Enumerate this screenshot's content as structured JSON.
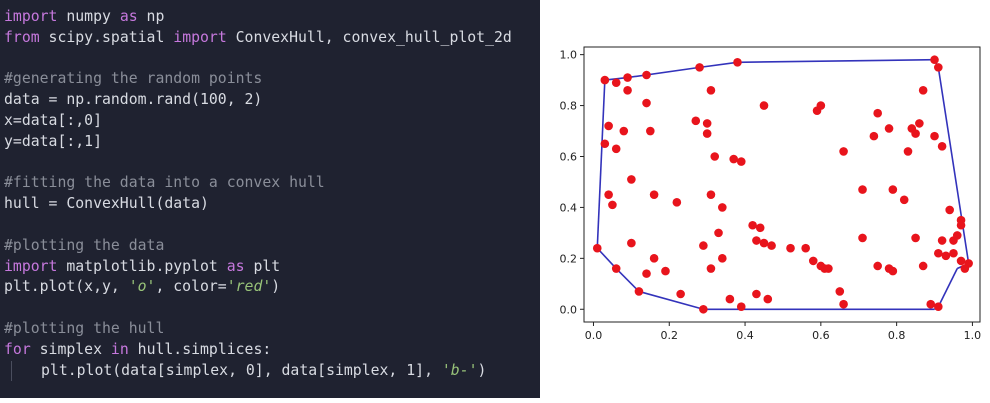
{
  "code": {
    "lines": [
      [
        {
          "t": "import",
          "c": "kw"
        },
        {
          "t": " numpy ",
          "c": ""
        },
        {
          "t": "as",
          "c": "kw"
        },
        {
          "t": " np",
          "c": ""
        }
      ],
      [
        {
          "t": "from",
          "c": "kw"
        },
        {
          "t": " scipy.spatial ",
          "c": ""
        },
        {
          "t": "import",
          "c": "kw"
        },
        {
          "t": " ConvexHull, convex_hull_plot_2d",
          "c": ""
        }
      ],
      [],
      [
        {
          "t": "#generating the random points",
          "c": "comment"
        }
      ],
      [
        {
          "t": "data = np.random.rand(100, 2)",
          "c": ""
        }
      ],
      [
        {
          "t": "x=data[:,0]",
          "c": ""
        }
      ],
      [
        {
          "t": "y=data[:,1]",
          "c": ""
        }
      ],
      [],
      [
        {
          "t": "#fitting the data into a convex hull",
          "c": "comment"
        }
      ],
      [
        {
          "t": "hull = ConvexHull(data)",
          "c": ""
        }
      ],
      [],
      [
        {
          "t": "#plotting the data",
          "c": "comment"
        }
      ],
      [
        {
          "t": "import",
          "c": "kw"
        },
        {
          "t": " matplotlib.pyplot ",
          "c": ""
        },
        {
          "t": "as",
          "c": "kw"
        },
        {
          "t": " plt",
          "c": ""
        }
      ],
      [
        {
          "t": "plt.plot(x,y, ",
          "c": ""
        },
        {
          "t": "'o'",
          "c": "str"
        },
        {
          "t": ", color=",
          "c": ""
        },
        {
          "t": "'red'",
          "c": "str"
        },
        {
          "t": ")",
          "c": ""
        }
      ],
      [],
      [
        {
          "t": "#plotting the hull",
          "c": "comment"
        }
      ],
      [
        {
          "t": "for",
          "c": "kw"
        },
        {
          "t": " simplex ",
          "c": ""
        },
        {
          "t": "in",
          "c": "kw"
        },
        {
          "t": " hull.simplices:",
          "c": ""
        }
      ],
      [
        {
          "t": "plt.plot(data[simplex, 0], data[simplex, 1], ",
          "c": ""
        },
        {
          "t": "'b-'",
          "c": "str"
        },
        {
          "t": ")",
          "c": ""
        }
      ]
    ],
    "indented_lines": [
      17
    ]
  },
  "colors": {
    "code_bg": "#1f2230",
    "point": "#e8141c",
    "hull": "#3333bb"
  },
  "chart_data": {
    "type": "scatter",
    "xlim": [
      -0.025,
      1.02
    ],
    "ylim": [
      -0.05,
      1.03
    ],
    "xticks": [
      0.0,
      0.2,
      0.4,
      0.6,
      0.8,
      1.0
    ],
    "yticks": [
      0.0,
      0.2,
      0.4,
      0.6,
      0.8,
      1.0
    ],
    "xtick_labels": [
      "0.0",
      "0.2",
      "0.4",
      "0.6",
      "0.8",
      "1.0"
    ],
    "ytick_labels": [
      "0.0",
      "0.2",
      "0.4",
      "0.6",
      "0.8",
      "1.0"
    ],
    "grid": false,
    "points": [
      [
        0.03,
        0.9
      ],
      [
        0.06,
        0.89
      ],
      [
        0.09,
        0.86
      ],
      [
        0.09,
        0.91
      ],
      [
        0.14,
        0.92
      ],
      [
        0.14,
        0.81
      ],
      [
        0.28,
        0.95
      ],
      [
        0.38,
        0.97
      ],
      [
        0.9,
        0.98
      ],
      [
        0.91,
        0.95
      ],
      [
        0.87,
        0.86
      ],
      [
        0.31,
        0.86
      ],
      [
        0.45,
        0.8
      ],
      [
        0.59,
        0.78
      ],
      [
        0.6,
        0.8
      ],
      [
        0.04,
        0.72
      ],
      [
        0.08,
        0.7
      ],
      [
        0.15,
        0.7
      ],
      [
        0.27,
        0.74
      ],
      [
        0.3,
        0.73
      ],
      [
        0.3,
        0.69
      ],
      [
        0.32,
        0.6
      ],
      [
        0.37,
        0.59
      ],
      [
        0.39,
        0.58
      ],
      [
        0.66,
        0.62
      ],
      [
        0.75,
        0.77
      ],
      [
        0.74,
        0.68
      ],
      [
        0.78,
        0.71
      ],
      [
        0.84,
        0.71
      ],
      [
        0.86,
        0.73
      ],
      [
        0.85,
        0.69
      ],
      [
        0.83,
        0.62
      ],
      [
        0.9,
        0.68
      ],
      [
        0.92,
        0.64
      ],
      [
        0.03,
        0.65
      ],
      [
        0.06,
        0.63
      ],
      [
        0.1,
        0.51
      ],
      [
        0.16,
        0.45
      ],
      [
        0.22,
        0.42
      ],
      [
        0.04,
        0.45
      ],
      [
        0.05,
        0.41
      ],
      [
        0.31,
        0.45
      ],
      [
        0.34,
        0.4
      ],
      [
        0.71,
        0.47
      ],
      [
        0.79,
        0.47
      ],
      [
        0.82,
        0.43
      ],
      [
        0.94,
        0.39
      ],
      [
        0.97,
        0.35
      ],
      [
        0.97,
        0.33
      ],
      [
        0.33,
        0.3
      ],
      [
        0.42,
        0.33
      ],
      [
        0.44,
        0.32
      ],
      [
        0.43,
        0.27
      ],
      [
        0.45,
        0.26
      ],
      [
        0.47,
        0.25
      ],
      [
        0.52,
        0.24
      ],
      [
        0.56,
        0.24
      ],
      [
        0.71,
        0.28
      ],
      [
        0.85,
        0.28
      ],
      [
        0.92,
        0.27
      ],
      [
        0.95,
        0.27
      ],
      [
        0.96,
        0.29
      ],
      [
        0.01,
        0.24
      ],
      [
        0.1,
        0.26
      ],
      [
        0.16,
        0.2
      ],
      [
        0.29,
        0.25
      ],
      [
        0.34,
        0.2
      ],
      [
        0.58,
        0.19
      ],
      [
        0.6,
        0.17
      ],
      [
        0.61,
        0.16
      ],
      [
        0.62,
        0.16
      ],
      [
        0.75,
        0.17
      ],
      [
        0.78,
        0.16
      ],
      [
        0.79,
        0.15
      ],
      [
        0.87,
        0.17
      ],
      [
        0.91,
        0.22
      ],
      [
        0.93,
        0.21
      ],
      [
        0.95,
        0.22
      ],
      [
        0.97,
        0.19
      ],
      [
        0.98,
        0.16
      ],
      [
        0.06,
        0.16
      ],
      [
        0.14,
        0.14
      ],
      [
        0.19,
        0.15
      ],
      [
        0.31,
        0.16
      ],
      [
        0.23,
        0.06
      ],
      [
        0.36,
        0.04
      ],
      [
        0.43,
        0.06
      ],
      [
        0.46,
        0.04
      ],
      [
        0.65,
        0.07
      ],
      [
        0.66,
        0.02
      ],
      [
        0.29,
        0.0
      ],
      [
        0.39,
        0.01
      ],
      [
        0.89,
        0.02
      ],
      [
        0.91,
        0.01
      ],
      [
        0.12,
        0.07
      ],
      [
        0.99,
        0.18
      ]
    ],
    "hull": [
      [
        0.03,
        0.9
      ],
      [
        0.09,
        0.91
      ],
      [
        0.28,
        0.95
      ],
      [
        0.38,
        0.97
      ],
      [
        0.9,
        0.98
      ],
      [
        0.91,
        0.95
      ],
      [
        0.99,
        0.18
      ],
      [
        0.96,
        0.16
      ],
      [
        0.91,
        0.01
      ],
      [
        0.9,
        0.0
      ],
      [
        0.29,
        0.0
      ],
      [
        0.12,
        0.07
      ],
      [
        0.06,
        0.16
      ],
      [
        0.01,
        0.24
      ],
      [
        0.03,
        0.9
      ]
    ]
  }
}
